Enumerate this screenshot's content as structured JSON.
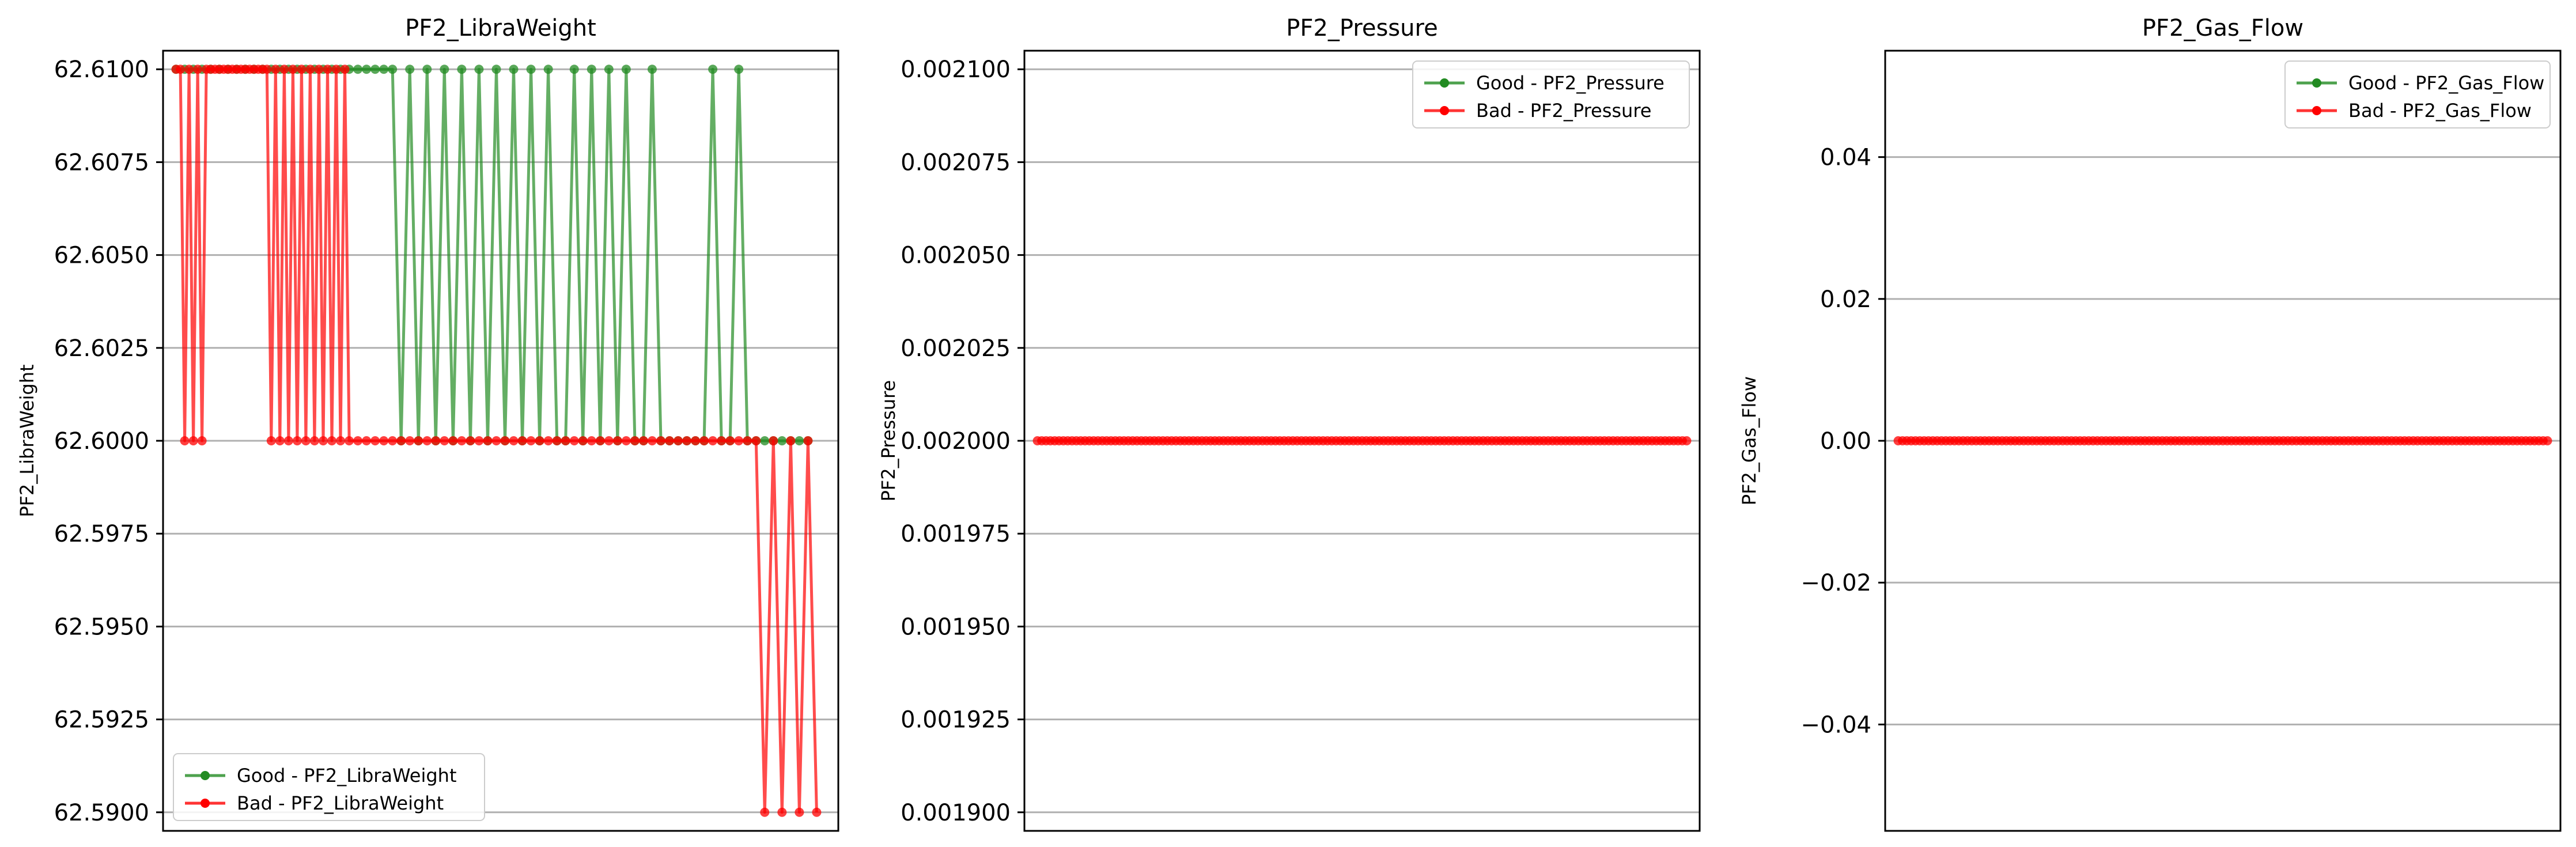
{
  "colors": {
    "good": "#228b22",
    "bad": "#ff0000",
    "grid": "#b0b0b0",
    "axes": "#000000"
  },
  "chart_data": [
    {
      "type": "line",
      "title": "PF2_LibraWeight",
      "xlabel": "",
      "ylabel": "PF2_LibraWeight",
      "ylim": [
        62.5895,
        62.6105
      ],
      "yticks": [
        62.59,
        62.5925,
        62.595,
        62.5975,
        62.6,
        62.6025,
        62.605,
        62.6075,
        62.61
      ],
      "ytick_labels": [
        "62.5900",
        "62.5925",
        "62.5950",
        "62.5975",
        "62.6000",
        "62.6025",
        "62.6050",
        "62.6075",
        "62.6100"
      ],
      "grid": "y",
      "legend_position": "lower-left",
      "xlim": [
        -3,
        153
      ],
      "series": [
        {
          "name": "Good - PF2_LibraWeight",
          "color_key": "good",
          "x": [
            0,
            2,
            4,
            6,
            8,
            10,
            12,
            14,
            16,
            18,
            20,
            22,
            24,
            26,
            28,
            30,
            32,
            34,
            36,
            38,
            40,
            42,
            44,
            46,
            48,
            50,
            52,
            54,
            56,
            58,
            60,
            62,
            64,
            66,
            68,
            70,
            72,
            74,
            76,
            78,
            80,
            82,
            84,
            86,
            88,
            90,
            92,
            94,
            96,
            98,
            100,
            102,
            104,
            106,
            108,
            110,
            112,
            114,
            116,
            118,
            120,
            122,
            124,
            126,
            128,
            130,
            132,
            134,
            136,
            138,
            140,
            142,
            144,
            146
          ],
          "y": [
            62.61,
            62.61,
            62.61,
            62.61,
            62.61,
            62.61,
            62.61,
            62.61,
            62.61,
            62.61,
            62.61,
            62.61,
            62.61,
            62.61,
            62.61,
            62.61,
            62.61,
            62.61,
            62.61,
            62.61,
            62.61,
            62.61,
            62.61,
            62.61,
            62.61,
            62.61,
            62.6,
            62.61,
            62.6,
            62.61,
            62.6,
            62.61,
            62.6,
            62.61,
            62.6,
            62.61,
            62.6,
            62.61,
            62.6,
            62.61,
            62.6,
            62.61,
            62.6,
            62.61,
            62.6,
            62.6,
            62.61,
            62.6,
            62.61,
            62.6,
            62.61,
            62.6,
            62.61,
            62.6,
            62.6,
            62.61,
            62.6,
            62.6,
            62.6,
            62.6,
            62.6,
            62.6,
            62.61,
            62.6,
            62.6,
            62.61,
            62.6,
            62.6,
            62.6,
            62.6,
            62.6,
            62.6,
            62.6,
            62.6
          ]
        },
        {
          "name": "Bad - PF2_LibraWeight",
          "color_key": "bad",
          "x": [
            0,
            1,
            2,
            3,
            4,
            5,
            6,
            7,
            8,
            9,
            10,
            11,
            12,
            13,
            14,
            15,
            16,
            17,
            18,
            19,
            20,
            21,
            22,
            23,
            24,
            25,
            26,
            27,
            28,
            29,
            30,
            31,
            32,
            33,
            34,
            35,
            36,
            37,
            38,
            39,
            40,
            42,
            44,
            46,
            48,
            50,
            52,
            54,
            56,
            58,
            60,
            62,
            64,
            66,
            68,
            70,
            72,
            74,
            76,
            78,
            80,
            82,
            84,
            86,
            88,
            90,
            92,
            94,
            96,
            98,
            100,
            102,
            104,
            106,
            108,
            110,
            112,
            114,
            116,
            118,
            120,
            122,
            124,
            126,
            128,
            130,
            132,
            134,
            136,
            138,
            140,
            142,
            144,
            146,
            148
          ],
          "y": [
            62.61,
            62.61,
            62.6,
            62.61,
            62.6,
            62.61,
            62.6,
            62.61,
            62.61,
            62.61,
            62.61,
            62.61,
            62.61,
            62.61,
            62.61,
            62.61,
            62.61,
            62.61,
            62.61,
            62.61,
            62.61,
            62.61,
            62.6,
            62.61,
            62.6,
            62.61,
            62.6,
            62.61,
            62.6,
            62.61,
            62.6,
            62.61,
            62.6,
            62.61,
            62.6,
            62.61,
            62.6,
            62.61,
            62.6,
            62.61,
            62.6,
            62.6,
            62.6,
            62.6,
            62.6,
            62.6,
            62.6,
            62.6,
            62.6,
            62.6,
            62.6,
            62.6,
            62.6,
            62.6,
            62.6,
            62.6,
            62.6,
            62.6,
            62.6,
            62.6,
            62.6,
            62.6,
            62.6,
            62.6,
            62.6,
            62.6,
            62.6,
            62.6,
            62.6,
            62.6,
            62.6,
            62.6,
            62.6,
            62.6,
            62.6,
            62.6,
            62.6,
            62.6,
            62.6,
            62.6,
            62.6,
            62.6,
            62.6,
            62.6,
            62.6,
            62.6,
            62.6,
            62.6,
            62.59,
            62.6,
            62.59,
            62.6,
            62.59,
            62.6,
            62.59
          ]
        }
      ]
    },
    {
      "type": "line",
      "title": "PF2_Pressure",
      "xlabel": "",
      "ylabel": "PF2_Pressure",
      "ylim": [
        0.001895,
        0.002105
      ],
      "yticks": [
        0.0019,
        0.001925,
        0.00195,
        0.001975,
        0.002,
        0.002025,
        0.00205,
        0.002075,
        0.0021
      ],
      "ytick_labels": [
        "0.001900",
        "0.001925",
        "0.001950",
        "0.001975",
        "0.002000",
        "0.002025",
        "0.002050",
        "0.002075",
        "0.002100"
      ],
      "grid": "y",
      "legend_position": "upper-right",
      "xlim": [
        -3,
        153
      ],
      "series": [
        {
          "name": "Good - PF2_Pressure",
          "color_key": "good",
          "x": [],
          "y": []
        },
        {
          "name": "Bad - PF2_Pressure",
          "color_key": "bad",
          "x_range": [
            0,
            150,
            1
          ],
          "constant_y": 0.002
        }
      ]
    },
    {
      "type": "line",
      "title": "PF2_Gas_Flow",
      "xlabel": "",
      "ylabel": "PF2_Gas_Flow",
      "ylim": [
        -0.055,
        0.055
      ],
      "yticks": [
        -0.04,
        -0.02,
        0.0,
        0.02,
        0.04
      ],
      "ytick_labels": [
        "−0.04",
        "−0.02",
        "0.00",
        "0.02",
        "0.04"
      ],
      "grid": "y",
      "legend_position": "upper-right",
      "xlim": [
        -3,
        153
      ],
      "series": [
        {
          "name": "Good - PF2_Gas_Flow",
          "color_key": "good",
          "x": [],
          "y": []
        },
        {
          "name": "Bad - PF2_Gas_Flow",
          "color_key": "bad",
          "x_range": [
            0,
            150,
            1
          ],
          "constant_y": 0.0
        }
      ]
    }
  ]
}
